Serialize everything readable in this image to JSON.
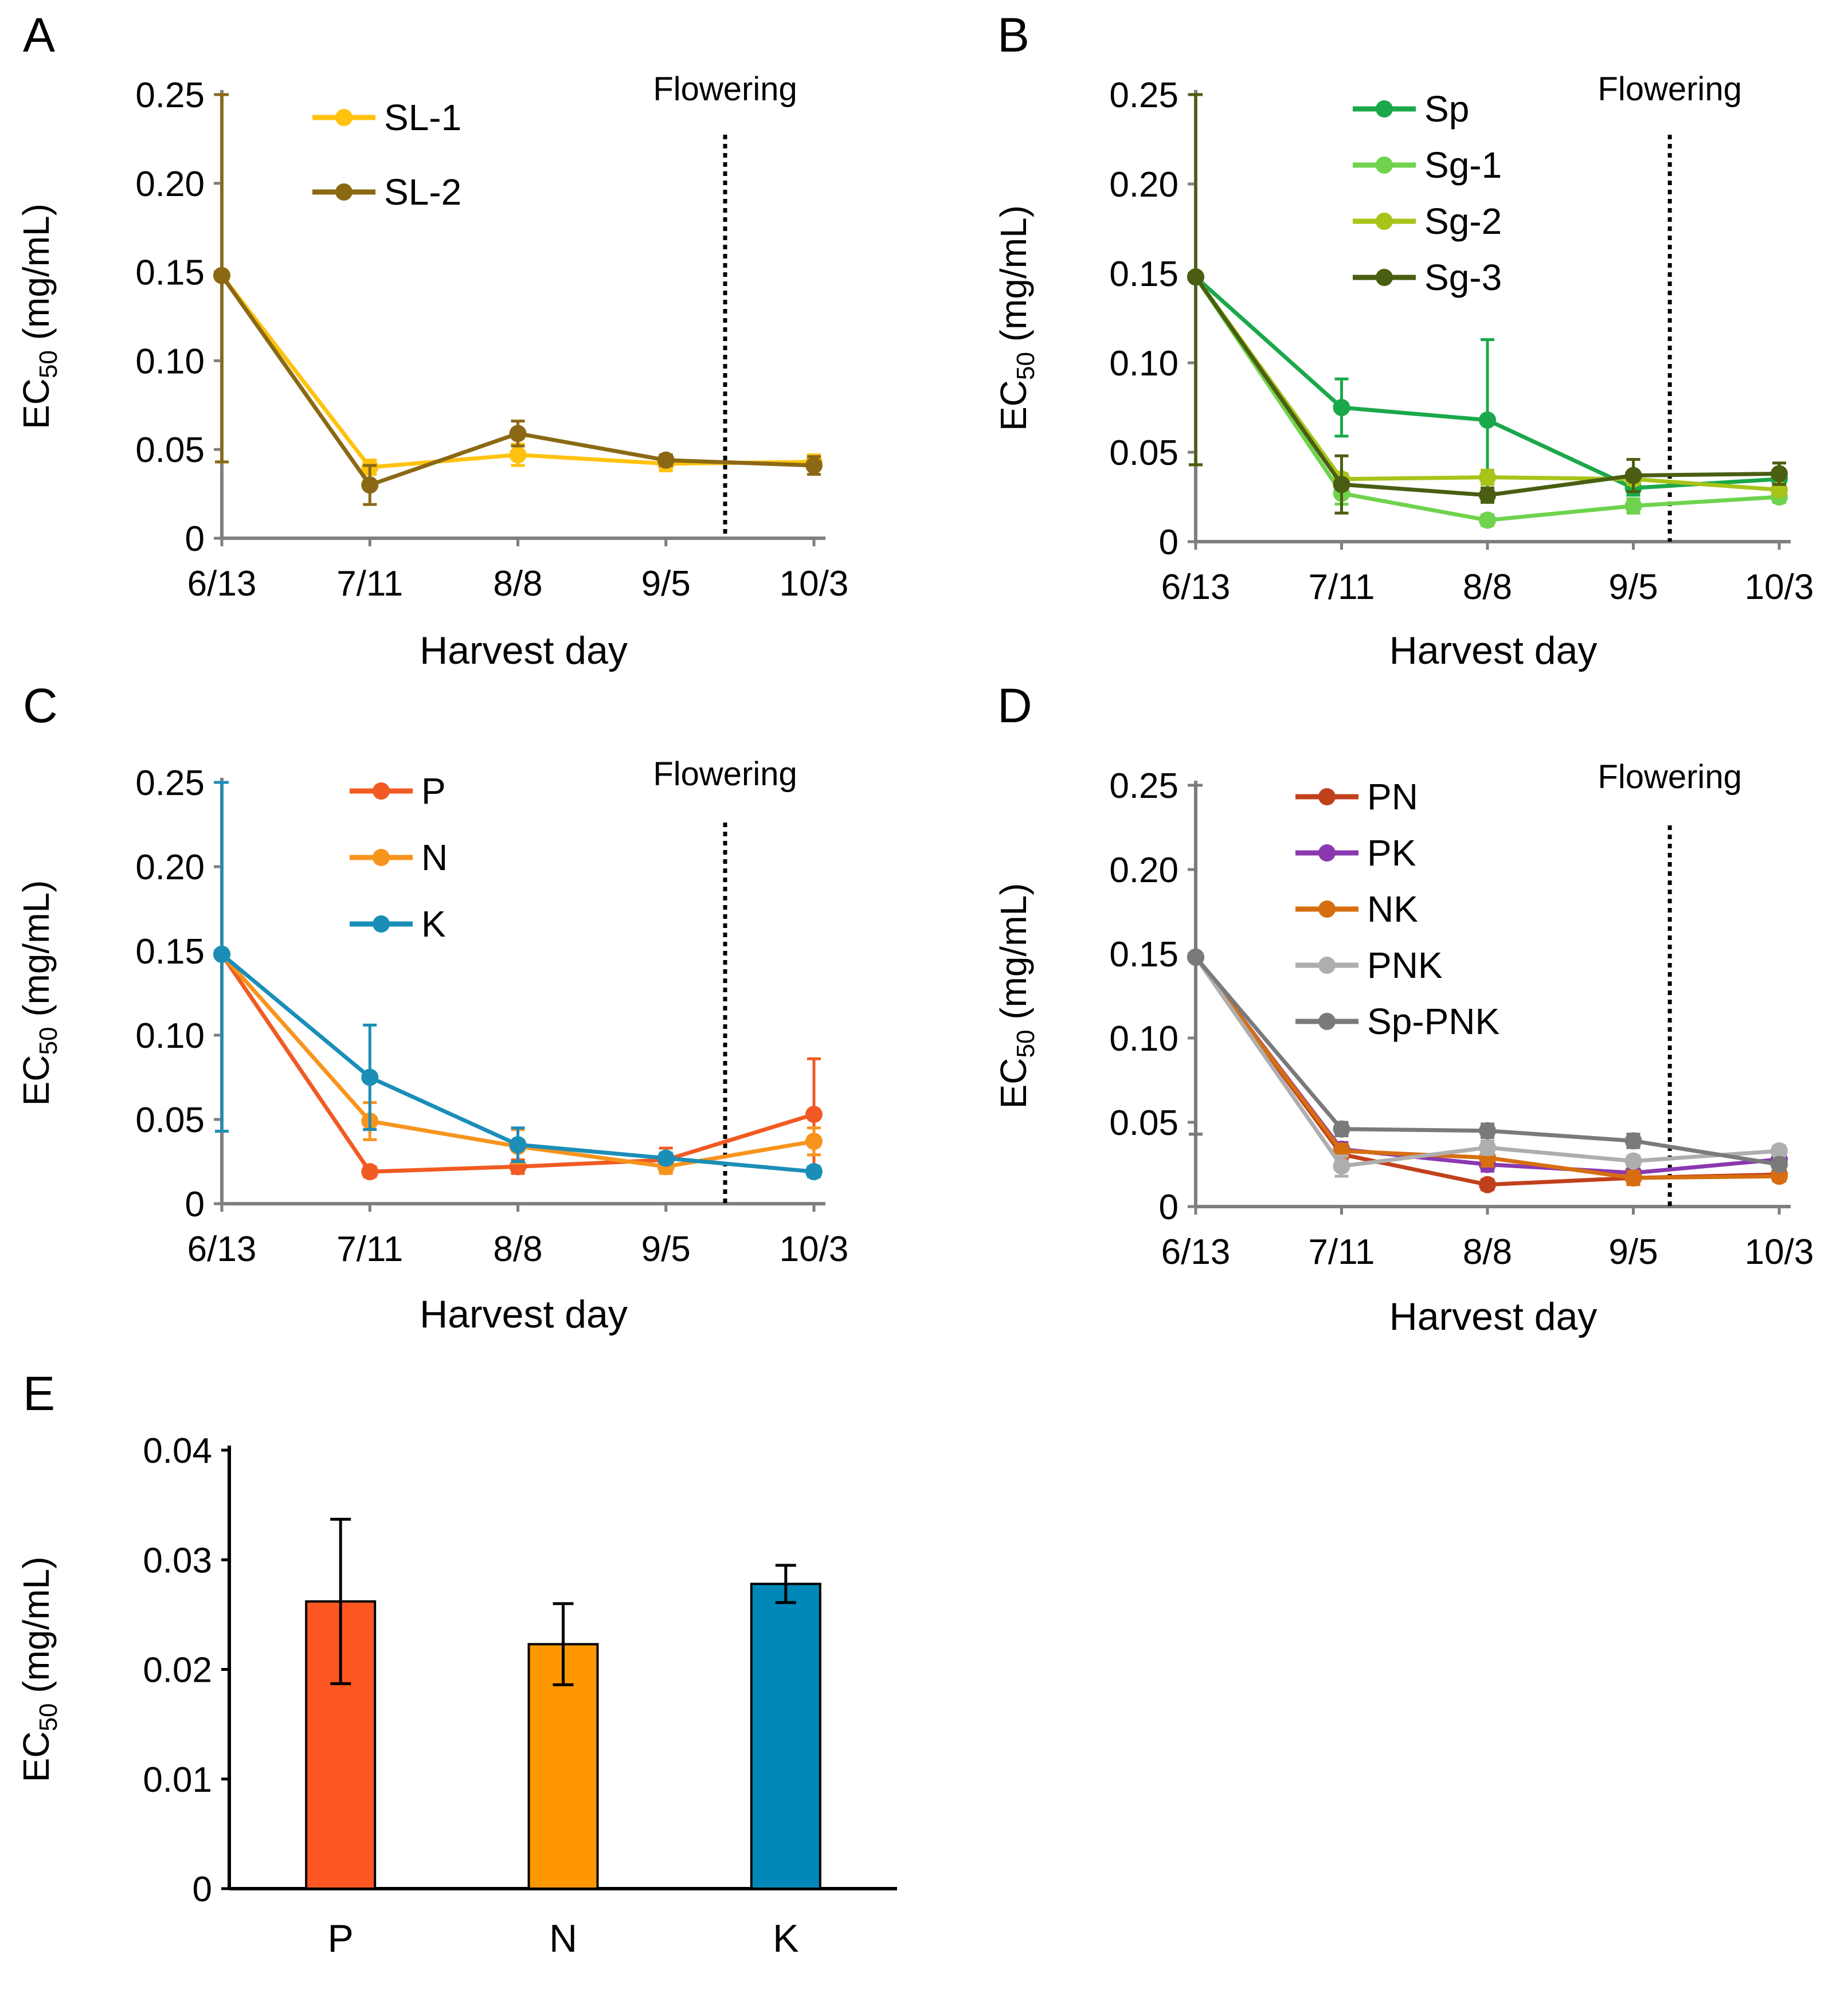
{
  "chart_data": [
    {
      "panel": "A",
      "type": "line",
      "categories": [
        "6/13",
        "7/11",
        "8/8",
        "9/5",
        "10/3"
      ],
      "ylim": [
        0,
        0.25
      ],
      "yticks": [
        "0",
        "0.05",
        "0.10",
        "0.15",
        "0.20",
        "0.25"
      ],
      "xlabel": "Harvest day",
      "ylabel_main": "EC",
      "ylabel_sub": "50",
      "ylabel_unit": " (mg/mL)",
      "annotation": "Flowering",
      "annotation_x": 3.4,
      "series": [
        {
          "name": "SL-1",
          "color": "#FFC20E",
          "values": [
            0.148,
            0.04,
            0.047,
            0.042,
            0.043
          ],
          "errors": [
            0.105,
            0.004,
            0.006,
            0.004,
            0.004
          ]
        },
        {
          "name": "SL-2",
          "color": "#8B6914",
          "values": [
            0.148,
            0.03,
            0.059,
            0.044,
            0.041
          ],
          "errors": [
            0.105,
            0.011,
            0.007,
            0.003,
            0.005
          ]
        }
      ]
    },
    {
      "panel": "B",
      "type": "line",
      "categories": [
        "6/13",
        "7/11",
        "8/8",
        "9/5",
        "10/3"
      ],
      "ylim": [
        0,
        0.25
      ],
      "yticks": [
        "0",
        "0.05",
        "0.10",
        "0.15",
        "0.20",
        "0.25"
      ],
      "xlabel": "Harvest day",
      "ylabel_main": "EC",
      "ylabel_sub": "50",
      "ylabel_unit": " (mg/mL)",
      "annotation": "Flowering",
      "annotation_x": 3.25,
      "series": [
        {
          "name": "Sp",
          "color": "#1BA84A",
          "values": [
            0.148,
            0.075,
            0.068,
            0.03,
            0.035
          ],
          "errors": [
            0.105,
            0.016,
            0.045,
            0.004,
            0.004
          ]
        },
        {
          "name": "Sg-1",
          "color": "#6FD34D",
          "values": [
            0.148,
            0.027,
            0.012,
            0.02,
            0.025
          ],
          "errors": [
            0.105,
            0.006,
            0.003,
            0.004,
            0.003
          ]
        },
        {
          "name": "Sg-2",
          "color": "#A8C419",
          "values": [
            0.148,
            0.035,
            0.036,
            0.035,
            0.029
          ],
          "errors": [
            0.105,
            0.003,
            0.004,
            0.003,
            0.003
          ]
        },
        {
          "name": "Sg-3",
          "color": "#4A5E12",
          "values": [
            0.148,
            0.032,
            0.026,
            0.037,
            0.038
          ],
          "errors": [
            0.105,
            0.016,
            0.004,
            0.009,
            0.006
          ]
        }
      ]
    },
    {
      "panel": "C",
      "type": "line",
      "categories": [
        "6/13",
        "7/11",
        "8/8",
        "9/5",
        "10/3"
      ],
      "ylim": [
        0,
        0.25
      ],
      "yticks": [
        "0",
        "0.05",
        "0.10",
        "0.15",
        "0.20",
        "0.25"
      ],
      "xlabel": "Harvest day",
      "ylabel_main": "EC",
      "ylabel_sub": "50",
      "ylabel_unit": " (mg/mL)",
      "annotation": "Flowering",
      "annotation_x": 3.4,
      "series": [
        {
          "name": "P",
          "color": "#F15A22",
          "values": [
            0.148,
            0.019,
            0.022,
            0.026,
            0.053
          ],
          "errors": [
            0.105,
            0.003,
            0.004,
            0.007,
            0.033
          ]
        },
        {
          "name": "N",
          "color": "#F7941D",
          "values": [
            0.148,
            0.049,
            0.034,
            0.022,
            0.037
          ],
          "errors": [
            0.105,
            0.011,
            0.01,
            0.004,
            0.008
          ]
        },
        {
          "name": "K",
          "color": "#1B8EB8",
          "values": [
            0.148,
            0.075,
            0.035,
            0.027,
            0.019
          ],
          "errors": [
            0.105,
            0.031,
            0.01,
            0.003,
            0.003
          ]
        }
      ]
    },
    {
      "panel": "D",
      "type": "line",
      "categories": [
        "6/13",
        "7/11",
        "8/8",
        "9/5",
        "10/3"
      ],
      "ylim": [
        0,
        0.25
      ],
      "yticks": [
        "0",
        "0.05",
        "0.10",
        "0.15",
        "0.20",
        "0.25"
      ],
      "xlabel": "Harvest day",
      "ylabel_main": "EC",
      "ylabel_sub": "50",
      "ylabel_unit": " (mg/mL)",
      "annotation": "Flowering",
      "annotation_x": 3.25,
      "series": [
        {
          "name": "PN",
          "color": "#C1401C",
          "values": [
            0.148,
            0.031,
            0.013,
            0.017,
            0.019
          ],
          "errors": [
            0.105,
            0.003,
            0.003,
            0.003,
            0.003
          ]
        },
        {
          "name": "PK",
          "color": "#8B38B0",
          "values": [
            0.148,
            0.034,
            0.025,
            0.02,
            0.028
          ],
          "errors": [
            0.105,
            0.004,
            0.004,
            0.003,
            0.003
          ]
        },
        {
          "name": "NK",
          "color": "#D66E0F",
          "values": [
            0.148,
            0.033,
            0.029,
            0.017,
            0.018
          ],
          "errors": [
            0.105,
            0.004,
            0.005,
            0.004,
            0.003
          ]
        },
        {
          "name": "PNK",
          "color": "#AEAEAE",
          "values": [
            0.148,
            0.024,
            0.035,
            0.027,
            0.033
          ],
          "errors": [
            0.105,
            0.006,
            0.004,
            0.003,
            0.003
          ]
        },
        {
          "name": "Sp-PNK",
          "color": "#7A7A7A",
          "values": [
            0.148,
            0.046,
            0.045,
            0.039,
            0.025
          ],
          "errors": [
            0.105,
            0.004,
            0.004,
            0.004,
            0.003
          ]
        }
      ]
    },
    {
      "panel": "E",
      "type": "bar",
      "categories": [
        "P",
        "N",
        "K"
      ],
      "ylim": [
        0,
        0.04
      ],
      "yticks": [
        "0",
        "0.01",
        "0.02",
        "0.03",
        "0.04"
      ],
      "xlabel": "",
      "ylabel_main": "EC",
      "ylabel_sub": "50",
      "ylabel_unit": " (mg/mL)",
      "values": [
        0.0262,
        0.0223,
        0.0278
      ],
      "errors": [
        0.0075,
        0.0037,
        0.0017
      ],
      "colors": [
        "#FF5722",
        "#FF9800",
        "#0088B8"
      ]
    }
  ]
}
